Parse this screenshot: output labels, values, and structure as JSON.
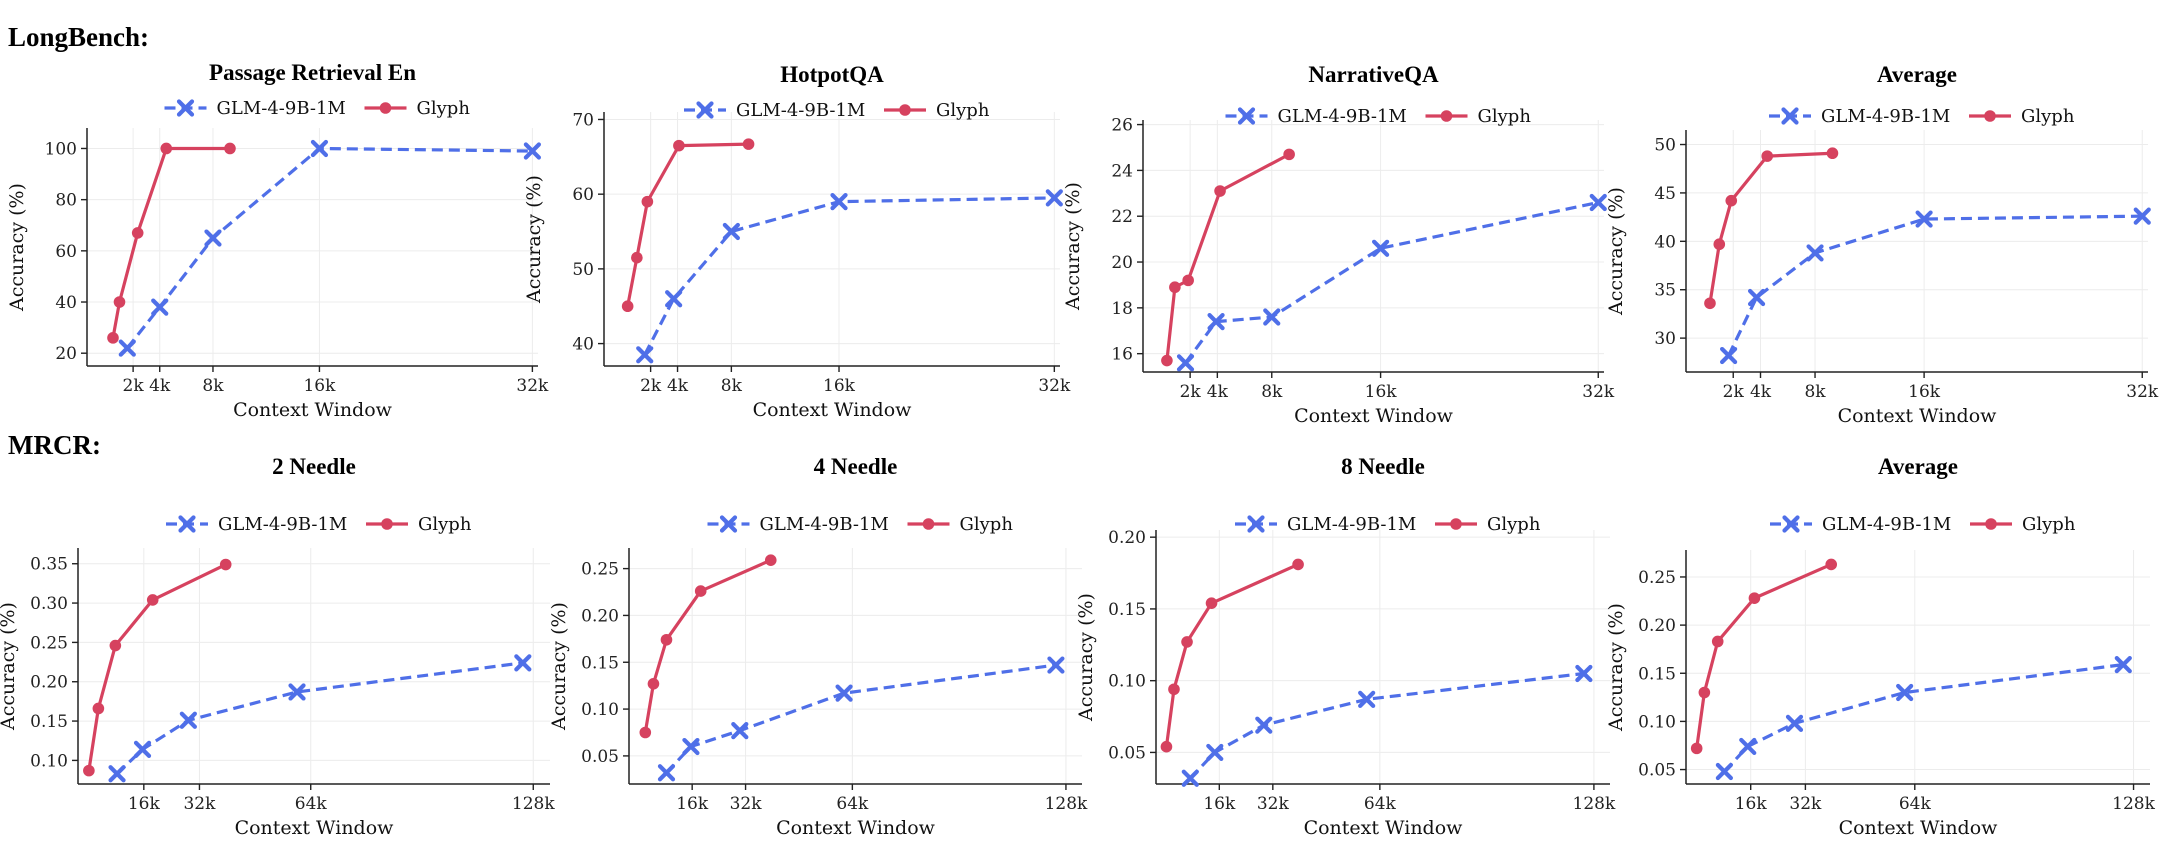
{
  "sections": [
    {
      "label": "LongBench:"
    },
    {
      "label": "MRCR:"
    }
  ],
  "colors": {
    "glm": "#4f6fe8",
    "glyph": "#d6425f"
  },
  "chart_data": [
    {
      "type": "line",
      "title": "Passage Retrieval En",
      "xlabel": "Context Window",
      "ylabel": "Accuracy (%)",
      "xlim": [
        -1500,
        33200
      ],
      "ylim": [
        15,
        108
      ],
      "xticks": [
        {
          "v": 2048,
          "label": "2k"
        },
        {
          "v": 4096,
          "label": "4k"
        },
        {
          "v": 8192,
          "label": "8k"
        },
        {
          "v": 16384,
          "label": "16k"
        },
        {
          "v": 32768,
          "label": "32k"
        }
      ],
      "yticks": [
        {
          "v": 20,
          "label": "20"
        },
        {
          "v": 40,
          "label": "40"
        },
        {
          "v": 60,
          "label": "60"
        },
        {
          "v": 80,
          "label": "80"
        },
        {
          "v": 100,
          "label": "100"
        }
      ],
      "series": [
        {
          "name": "GLM-4-9B-1M",
          "marker": "x",
          "x": [
            1600,
            4096,
            8192,
            16384,
            32768
          ],
          "y": [
            22,
            38,
            65,
            100,
            99
          ]
        },
        {
          "name": "Glyph",
          "marker": "o",
          "x": [
            500,
            1000,
            2400,
            4600,
            9500
          ],
          "y": [
            26,
            40,
            67,
            100,
            100
          ]
        }
      ]
    },
    {
      "type": "line",
      "title": "HotpotQA",
      "xlabel": "Context Window",
      "ylabel": "Accuracy (%)",
      "xlim": [
        -1500,
        33200
      ],
      "ylim": [
        37,
        71
      ],
      "xticks": [
        {
          "v": 2048,
          "label": "2k"
        },
        {
          "v": 4096,
          "label": "4k"
        },
        {
          "v": 8192,
          "label": "8k"
        },
        {
          "v": 16384,
          "label": "16k"
        },
        {
          "v": 32768,
          "label": "32k"
        }
      ],
      "yticks": [
        {
          "v": 40,
          "label": "40"
        },
        {
          "v": 50,
          "label": "50"
        },
        {
          "v": 60,
          "label": "60"
        },
        {
          "v": 70,
          "label": "70"
        }
      ],
      "series": [
        {
          "name": "GLM-4-9B-1M",
          "marker": "x",
          "x": [
            1600,
            3800,
            8192,
            16384,
            32768
          ],
          "y": [
            38.5,
            46,
            55,
            59,
            59.5
          ]
        },
        {
          "name": "Glyph",
          "marker": "o",
          "x": [
            300,
            1000,
            1800,
            4200,
            9500
          ],
          "y": [
            45,
            51.5,
            59,
            66.5,
            66.7
          ]
        }
      ]
    },
    {
      "type": "line",
      "title": "NarrativeQA",
      "xlabel": "Context Window",
      "ylabel": "Accuracy (%)",
      "xlim": [
        -1500,
        33200
      ],
      "ylim": [
        15.2,
        26.2
      ],
      "xticks": [
        {
          "v": 2048,
          "label": "2k"
        },
        {
          "v": 4096,
          "label": "4k"
        },
        {
          "v": 8192,
          "label": "8k"
        },
        {
          "v": 16384,
          "label": "16k"
        },
        {
          "v": 32768,
          "label": "32k"
        }
      ],
      "yticks": [
        {
          "v": 16,
          "label": "16"
        },
        {
          "v": 18,
          "label": "18"
        },
        {
          "v": 20,
          "label": "20"
        },
        {
          "v": 22,
          "label": "22"
        },
        {
          "v": 24,
          "label": "24"
        },
        {
          "v": 26,
          "label": "26"
        }
      ],
      "series": [
        {
          "name": "GLM-4-9B-1M",
          "marker": "x",
          "x": [
            1700,
            4000,
            8192,
            16384,
            32768
          ],
          "y": [
            15.6,
            17.4,
            17.6,
            20.6,
            22.6
          ]
        },
        {
          "name": "Glyph",
          "marker": "o",
          "x": [
            300,
            900,
            1900,
            4300,
            9500
          ],
          "y": [
            15.7,
            18.9,
            19.2,
            23.1,
            24.7
          ]
        }
      ]
    },
    {
      "type": "line",
      "title": "Average",
      "xlabel": "Context Window",
      "ylabel": "Accuracy (%)",
      "xlim": [
        -1500,
        33200
      ],
      "ylim": [
        26.5,
        51.5
      ],
      "xticks": [
        {
          "v": 2048,
          "label": "2k"
        },
        {
          "v": 4096,
          "label": "4k"
        },
        {
          "v": 8192,
          "label": "8k"
        },
        {
          "v": 16384,
          "label": "16k"
        },
        {
          "v": 32768,
          "label": "32k"
        }
      ],
      "yticks": [
        {
          "v": 30,
          "label": "30"
        },
        {
          "v": 35,
          "label": "35"
        },
        {
          "v": 40,
          "label": "40"
        },
        {
          "v": 45,
          "label": "45"
        },
        {
          "v": 50,
          "label": "50"
        }
      ],
      "series": [
        {
          "name": "GLM-4-9B-1M",
          "marker": "x",
          "x": [
            1700,
            3800,
            8192,
            16384,
            32768
          ],
          "y": [
            28.2,
            34.2,
            38.8,
            42.3,
            42.6
          ]
        },
        {
          "name": "Glyph",
          "marker": "o",
          "x": [
            300,
            1000,
            1900,
            4600,
            9500
          ],
          "y": [
            33.6,
            39.7,
            44.2,
            48.8,
            49.1
          ]
        }
      ]
    },
    {
      "type": "line",
      "title": "2 Needle",
      "xlabel": "Context Window",
      "ylabel": "Accuracy (%)",
      "xlim": [
        -3000,
        136000
      ],
      "ylim": [
        0.07,
        0.37
      ],
      "xticks": [
        {
          "v": 16384,
          "label": "16k"
        },
        {
          "v": 32768,
          "label": "32k"
        },
        {
          "v": 65536,
          "label": "64k"
        },
        {
          "v": 131072,
          "label": "128k"
        }
      ],
      "yticks": [
        {
          "v": 0.1,
          "label": "0.10"
        },
        {
          "v": 0.15,
          "label": "0.15"
        },
        {
          "v": 0.2,
          "label": "0.20"
        },
        {
          "v": 0.25,
          "label": "0.25"
        },
        {
          "v": 0.3,
          "label": "0.30"
        },
        {
          "v": 0.35,
          "label": "0.35"
        }
      ],
      "series": [
        {
          "name": "GLM-4-9B-1M",
          "marker": "x",
          "x": [
            8500,
            16000,
            29500,
            61500,
            128000
          ],
          "y": [
            0.083,
            0.114,
            0.151,
            0.187,
            0.224
          ]
        },
        {
          "name": "Glyph",
          "marker": "o",
          "x": [
            200,
            3000,
            8000,
            19000,
            40500
          ],
          "y": [
            0.087,
            0.166,
            0.246,
            0.304,
            0.349
          ]
        }
      ]
    },
    {
      "type": "line",
      "title": "4 Needle",
      "xlabel": "Context Window",
      "ylabel": "Accuracy (%)",
      "xlim": [
        -3000,
        136000
      ],
      "ylim": [
        0.02,
        0.272
      ],
      "xticks": [
        {
          "v": 16384,
          "label": "16k"
        },
        {
          "v": 32768,
          "label": "32k"
        },
        {
          "v": 65536,
          "label": "64k"
        },
        {
          "v": 131072,
          "label": "128k"
        }
      ],
      "yticks": [
        {
          "v": 0.05,
          "label": "0.05"
        },
        {
          "v": 0.1,
          "label": "0.10"
        },
        {
          "v": 0.15,
          "label": "0.15"
        },
        {
          "v": 0.2,
          "label": "0.20"
        },
        {
          "v": 0.25,
          "label": "0.25"
        }
      ],
      "series": [
        {
          "name": "GLM-4-9B-1M",
          "marker": "x",
          "x": [
            8500,
            16000,
            31000,
            63000,
            128000
          ],
          "y": [
            0.032,
            0.06,
            0.077,
            0.117,
            0.147
          ]
        },
        {
          "name": "Glyph",
          "marker": "o",
          "x": [
            2000,
            4500,
            8500,
            19000,
            40500
          ],
          "y": [
            0.075,
            0.127,
            0.174,
            0.226,
            0.259
          ]
        }
      ]
    },
    {
      "type": "line",
      "title": "8 Needle",
      "xlabel": "Context Window",
      "ylabel": "Accuracy (%)",
      "xlim": [
        -3000,
        136000
      ],
      "ylim": [
        0.028,
        0.205
      ],
      "xticks": [
        {
          "v": 16384,
          "label": "16k"
        },
        {
          "v": 32768,
          "label": "32k"
        },
        {
          "v": 65536,
          "label": "64k"
        },
        {
          "v": 131072,
          "label": "128k"
        }
      ],
      "yticks": [
        {
          "v": 0.05,
          "label": "0.05"
        },
        {
          "v": 0.1,
          "label": "0.10"
        },
        {
          "v": 0.15,
          "label": "0.15"
        },
        {
          "v": 0.2,
          "label": "0.20"
        }
      ],
      "series": [
        {
          "name": "GLM-4-9B-1M",
          "marker": "x",
          "x": [
            7500,
            15000,
            30000,
            61500,
            128000
          ],
          "y": [
            0.032,
            0.05,
            0.069,
            0.087,
            0.105
          ]
        },
        {
          "name": "Glyph",
          "marker": "o",
          "x": [
            200,
            2500,
            6500,
            14000,
            40500
          ],
          "y": [
            0.054,
            0.094,
            0.127,
            0.154,
            0.181
          ]
        }
      ]
    },
    {
      "type": "line",
      "title": "Average",
      "xlabel": "Context Window",
      "ylabel": "Accuracy (%)",
      "xlim": [
        -3000,
        136000
      ],
      "ylim": [
        0.035,
        0.278
      ],
      "xticks": [
        {
          "v": 16384,
          "label": "16k"
        },
        {
          "v": 32768,
          "label": "32k"
        },
        {
          "v": 65536,
          "label": "64k"
        },
        {
          "v": 131072,
          "label": "128k"
        }
      ],
      "yticks": [
        {
          "v": 0.05,
          "label": "0.05"
        },
        {
          "v": 0.1,
          "label": "0.10"
        },
        {
          "v": 0.15,
          "label": "0.15"
        },
        {
          "v": 0.2,
          "label": "0.20"
        },
        {
          "v": 0.25,
          "label": "0.25"
        }
      ],
      "series": [
        {
          "name": "GLM-4-9B-1M",
          "marker": "x",
          "x": [
            8500,
            15500,
            29500,
            62500,
            128000
          ],
          "y": [
            0.048,
            0.074,
            0.098,
            0.13,
            0.159
          ]
        },
        {
          "name": "Glyph",
          "marker": "o",
          "x": [
            200,
            2500,
            6500,
            17500,
            40500
          ],
          "y": [
            0.072,
            0.13,
            0.183,
            0.228,
            0.263
          ]
        }
      ]
    }
  ]
}
